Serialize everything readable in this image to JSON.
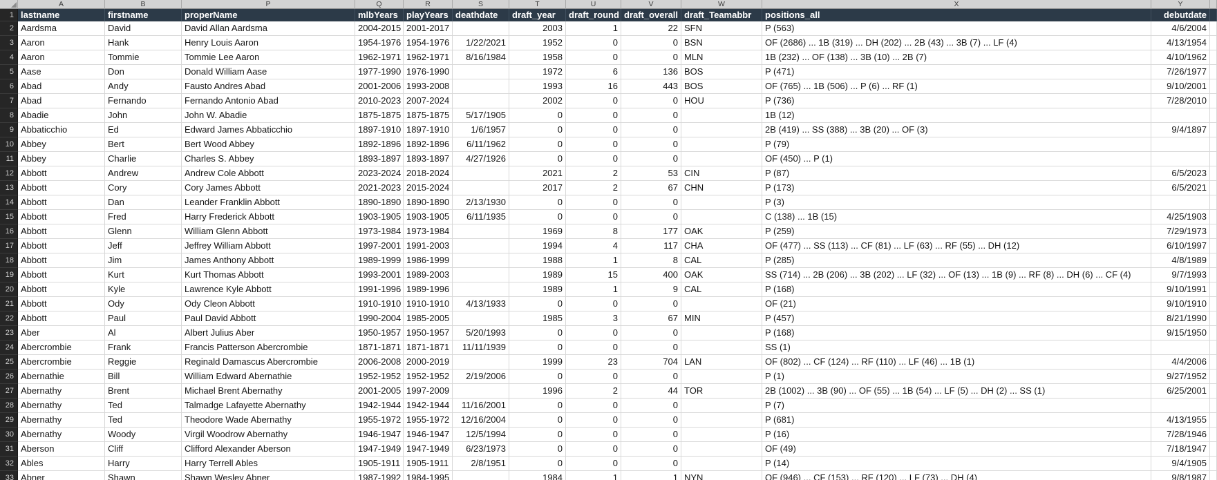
{
  "header_row_number": "1",
  "colors": {
    "header_fill": "#2c3a48",
    "header_text": "#ffffff",
    "gutter_fill": "#262626",
    "gutter_text": "#cfcfcf",
    "letters_fill": "#d3d3d3",
    "letters_text": "#3d3d3d",
    "gridline": "#d8d8d8",
    "cell_text": "#161616",
    "cell_fill": "#ffffff"
  },
  "columns": [
    {
      "letter": "A",
      "field": "lastname",
      "label": "lastname"
    },
    {
      "letter": "B",
      "field": "firstname",
      "label": "firstname"
    },
    {
      "letter": "P",
      "field": "properName",
      "label": "properName"
    },
    {
      "letter": "Q",
      "field": "mlbYears",
      "label": "mlbYears"
    },
    {
      "letter": "R",
      "field": "playYears",
      "label": "playYears"
    },
    {
      "letter": "S",
      "field": "deathdate",
      "label": "deathdate"
    },
    {
      "letter": "T",
      "field": "draft_year",
      "label": "draft_year"
    },
    {
      "letter": "U",
      "field": "draft_round",
      "label": "draft_round"
    },
    {
      "letter": "V",
      "field": "draft_overall",
      "label": "draft_overall"
    },
    {
      "letter": "W",
      "field": "draft_Teamabbr",
      "label": "draft_Teamabbr"
    },
    {
      "letter": "X",
      "field": "positions_all",
      "label": "positions_all"
    },
    {
      "letter": "Y",
      "field": "debutdate",
      "label": "debutdate"
    }
  ],
  "rows": [
    {
      "n": "2",
      "lastname": "Aardsma",
      "firstname": "David",
      "properName": "David Allan Aardsma",
      "mlbYears": "2004-2015",
      "playYears": "2001-2017",
      "deathdate": "",
      "draft_year": "2003",
      "draft_round": "1",
      "draft_overall": "22",
      "draft_Teamabbr": "SFN",
      "positions_all": "P (563)",
      "debutdate": "4/6/2004"
    },
    {
      "n": "3",
      "lastname": "Aaron",
      "firstname": "Hank",
      "properName": "Henry Louis Aaron",
      "mlbYears": "1954-1976",
      "playYears": "1954-1976",
      "deathdate": "1/22/2021",
      "draft_year": "1952",
      "draft_round": "0",
      "draft_overall": "0",
      "draft_Teamabbr": "BSN",
      "positions_all": "OF (2686) ... 1B (319) ... DH (202) ... 2B (43) ... 3B (7) ... LF (4)",
      "debutdate": "4/13/1954"
    },
    {
      "n": "4",
      "lastname": "Aaron",
      "firstname": "Tommie",
      "properName": "Tommie Lee Aaron",
      "mlbYears": "1962-1971",
      "playYears": "1962-1971",
      "deathdate": "8/16/1984",
      "draft_year": "1958",
      "draft_round": "0",
      "draft_overall": "0",
      "draft_Teamabbr": "MLN",
      "positions_all": "1B (232) ... OF (138) ... 3B (10) ... 2B (7)",
      "debutdate": "4/10/1962"
    },
    {
      "n": "5",
      "lastname": "Aase",
      "firstname": "Don",
      "properName": "Donald William Aase",
      "mlbYears": "1977-1990",
      "playYears": "1976-1990",
      "deathdate": "",
      "draft_year": "1972",
      "draft_round": "6",
      "draft_overall": "136",
      "draft_Teamabbr": "BOS",
      "positions_all": "P (471)",
      "debutdate": "7/26/1977"
    },
    {
      "n": "6",
      "lastname": "Abad",
      "firstname": "Andy",
      "properName": "Fausto Andres Abad",
      "mlbYears": "2001-2006",
      "playYears": "1993-2008",
      "deathdate": "",
      "draft_year": "1993",
      "draft_round": "16",
      "draft_overall": "443",
      "draft_Teamabbr": "BOS",
      "positions_all": "OF (765) ... 1B (506) ... P (6) ... RF (1)",
      "debutdate": "9/10/2001"
    },
    {
      "n": "7",
      "lastname": "Abad",
      "firstname": "Fernando",
      "properName": "Fernando Antonio Abad",
      "mlbYears": "2010-2023",
      "playYears": "2007-2024",
      "deathdate": "",
      "draft_year": "2002",
      "draft_round": "0",
      "draft_overall": "0",
      "draft_Teamabbr": "HOU",
      "positions_all": "P (736)",
      "debutdate": "7/28/2010"
    },
    {
      "n": "8",
      "lastname": "Abadie",
      "firstname": "John",
      "properName": "John W. Abadie",
      "mlbYears": "1875-1875",
      "playYears": "1875-1875",
      "deathdate": "5/17/1905",
      "draft_year": "0",
      "draft_round": "0",
      "draft_overall": "0",
      "draft_Teamabbr": "",
      "positions_all": "1B (12)",
      "debutdate": ""
    },
    {
      "n": "9",
      "lastname": "Abbaticchio",
      "firstname": "Ed",
      "properName": "Edward James Abbaticchio",
      "mlbYears": "1897-1910",
      "playYears": "1897-1910",
      "deathdate": "1/6/1957",
      "draft_year": "0",
      "draft_round": "0",
      "draft_overall": "0",
      "draft_Teamabbr": "",
      "positions_all": "2B (419) ... SS (388) ... 3B (20) ... OF (3)",
      "debutdate": "9/4/1897"
    },
    {
      "n": "10",
      "lastname": "Abbey",
      "firstname": "Bert",
      "properName": "Bert Wood Abbey",
      "mlbYears": "1892-1896",
      "playYears": "1892-1896",
      "deathdate": "6/11/1962",
      "draft_year": "0",
      "draft_round": "0",
      "draft_overall": "0",
      "draft_Teamabbr": "",
      "positions_all": "P (79)",
      "debutdate": ""
    },
    {
      "n": "11",
      "lastname": "Abbey",
      "firstname": "Charlie",
      "properName": "Charles S. Abbey",
      "mlbYears": "1893-1897",
      "playYears": "1893-1897",
      "deathdate": "4/27/1926",
      "draft_year": "0",
      "draft_round": "0",
      "draft_overall": "0",
      "draft_Teamabbr": "",
      "positions_all": "OF (450) ... P (1)",
      "debutdate": ""
    },
    {
      "n": "12",
      "lastname": "Abbott",
      "firstname": "Andrew",
      "properName": "Andrew Cole Abbott",
      "mlbYears": "2023-2024",
      "playYears": "2018-2024",
      "deathdate": "",
      "draft_year": "2021",
      "draft_round": "2",
      "draft_overall": "53",
      "draft_Teamabbr": "CIN",
      "positions_all": "P (87)",
      "debutdate": "6/5/2023"
    },
    {
      "n": "13",
      "lastname": "Abbott",
      "firstname": "Cory",
      "properName": "Cory James Abbott",
      "mlbYears": "2021-2023",
      "playYears": "2015-2024",
      "deathdate": "",
      "draft_year": "2017",
      "draft_round": "2",
      "draft_overall": "67",
      "draft_Teamabbr": "CHN",
      "positions_all": "P (173)",
      "debutdate": "6/5/2021"
    },
    {
      "n": "14",
      "lastname": "Abbott",
      "firstname": "Dan",
      "properName": "Leander Franklin Abbott",
      "mlbYears": "1890-1890",
      "playYears": "1890-1890",
      "deathdate": "2/13/1930",
      "draft_year": "0",
      "draft_round": "0",
      "draft_overall": "0",
      "draft_Teamabbr": "",
      "positions_all": "P (3)",
      "debutdate": ""
    },
    {
      "n": "15",
      "lastname": "Abbott",
      "firstname": "Fred",
      "properName": "Harry Frederick Abbott",
      "mlbYears": "1903-1905",
      "playYears": "1903-1905",
      "deathdate": "6/11/1935",
      "draft_year": "0",
      "draft_round": "0",
      "draft_overall": "0",
      "draft_Teamabbr": "",
      "positions_all": "C (138) ... 1B (15)",
      "debutdate": "4/25/1903"
    },
    {
      "n": "16",
      "lastname": "Abbott",
      "firstname": "Glenn",
      "properName": "William Glenn Abbott",
      "mlbYears": "1973-1984",
      "playYears": "1973-1984",
      "deathdate": "",
      "draft_year": "1969",
      "draft_round": "8",
      "draft_overall": "177",
      "draft_Teamabbr": "OAK",
      "positions_all": "P (259)",
      "debutdate": "7/29/1973"
    },
    {
      "n": "17",
      "lastname": "Abbott",
      "firstname": "Jeff",
      "properName": "Jeffrey William Abbott",
      "mlbYears": "1997-2001",
      "playYears": "1991-2003",
      "deathdate": "",
      "draft_year": "1994",
      "draft_round": "4",
      "draft_overall": "117",
      "draft_Teamabbr": "CHA",
      "positions_all": "OF (477) ... SS (113) ... CF (81) ... LF (63) ... RF (55) ... DH (12)",
      "debutdate": "6/10/1997"
    },
    {
      "n": "18",
      "lastname": "Abbott",
      "firstname": "Jim",
      "properName": "James Anthony Abbott",
      "mlbYears": "1989-1999",
      "playYears": "1986-1999",
      "deathdate": "",
      "draft_year": "1988",
      "draft_round": "1",
      "draft_overall": "8",
      "draft_Teamabbr": "CAL",
      "positions_all": "P (285)",
      "debutdate": "4/8/1989"
    },
    {
      "n": "19",
      "lastname": "Abbott",
      "firstname": "Kurt",
      "properName": "Kurt Thomas Abbott",
      "mlbYears": "1993-2001",
      "playYears": "1989-2003",
      "deathdate": "",
      "draft_year": "1989",
      "draft_round": "15",
      "draft_overall": "400",
      "draft_Teamabbr": "OAK",
      "positions_all": "SS (714) ... 2B (206) ... 3B (202) ... LF (32) ... OF (13) ... 1B (9) ... RF (8) ... DH (6) ... CF (4)",
      "debutdate": "9/7/1993"
    },
    {
      "n": "20",
      "lastname": "Abbott",
      "firstname": "Kyle",
      "properName": "Lawrence Kyle Abbott",
      "mlbYears": "1991-1996",
      "playYears": "1989-1996",
      "deathdate": "",
      "draft_year": "1989",
      "draft_round": "1",
      "draft_overall": "9",
      "draft_Teamabbr": "CAL",
      "positions_all": "P (168)",
      "debutdate": "9/10/1991"
    },
    {
      "n": "21",
      "lastname": "Abbott",
      "firstname": "Ody",
      "properName": "Ody Cleon Abbott",
      "mlbYears": "1910-1910",
      "playYears": "1910-1910",
      "deathdate": "4/13/1933",
      "draft_year": "0",
      "draft_round": "0",
      "draft_overall": "0",
      "draft_Teamabbr": "",
      "positions_all": "OF (21)",
      "debutdate": "9/10/1910"
    },
    {
      "n": "22",
      "lastname": "Abbott",
      "firstname": "Paul",
      "properName": "Paul David Abbott",
      "mlbYears": "1990-2004",
      "playYears": "1985-2005",
      "deathdate": "",
      "draft_year": "1985",
      "draft_round": "3",
      "draft_overall": "67",
      "draft_Teamabbr": "MIN",
      "positions_all": "P (457)",
      "debutdate": "8/21/1990"
    },
    {
      "n": "23",
      "lastname": "Aber",
      "firstname": "Al",
      "properName": "Albert Julius Aber",
      "mlbYears": "1950-1957",
      "playYears": "1950-1957",
      "deathdate": "5/20/1993",
      "draft_year": "0",
      "draft_round": "0",
      "draft_overall": "0",
      "draft_Teamabbr": "",
      "positions_all": "P (168)",
      "debutdate": "9/15/1950"
    },
    {
      "n": "24",
      "lastname": "Abercrombie",
      "firstname": "Frank",
      "properName": "Francis Patterson Abercrombie",
      "mlbYears": "1871-1871",
      "playYears": "1871-1871",
      "deathdate": "11/11/1939",
      "draft_year": "0",
      "draft_round": "0",
      "draft_overall": "0",
      "draft_Teamabbr": "",
      "positions_all": "SS (1)",
      "debutdate": ""
    },
    {
      "n": "25",
      "lastname": "Abercrombie",
      "firstname": "Reggie",
      "properName": "Reginald Damascus Abercrombie",
      "mlbYears": "2006-2008",
      "playYears": "2000-2019",
      "deathdate": "",
      "draft_year": "1999",
      "draft_round": "23",
      "draft_overall": "704",
      "draft_Teamabbr": "LAN",
      "positions_all": "OF (802) ... CF (124) ... RF (110) ... LF (46) ... 1B (1)",
      "debutdate": "4/4/2006"
    },
    {
      "n": "26",
      "lastname": "Abernathie",
      "firstname": "Bill",
      "properName": "William Edward Abernathie",
      "mlbYears": "1952-1952",
      "playYears": "1952-1952",
      "deathdate": "2/19/2006",
      "draft_year": "0",
      "draft_round": "0",
      "draft_overall": "0",
      "draft_Teamabbr": "",
      "positions_all": "P (1)",
      "debutdate": "9/27/1952"
    },
    {
      "n": "27",
      "lastname": "Abernathy",
      "firstname": "Brent",
      "properName": "Michael Brent Abernathy",
      "mlbYears": "2001-2005",
      "playYears": "1997-2009",
      "deathdate": "",
      "draft_year": "1996",
      "draft_round": "2",
      "draft_overall": "44",
      "draft_Teamabbr": "TOR",
      "positions_all": "2B (1002) ... 3B (90) ... OF (55) ... 1B (54) ... LF (5) ... DH (2) ... SS (1)",
      "debutdate": "6/25/2001"
    },
    {
      "n": "28",
      "lastname": "Abernathy",
      "firstname": "Ted",
      "properName": "Talmadge Lafayette Abernathy",
      "mlbYears": "1942-1944",
      "playYears": "1942-1944",
      "deathdate": "11/16/2001",
      "draft_year": "0",
      "draft_round": "0",
      "draft_overall": "0",
      "draft_Teamabbr": "",
      "positions_all": "P (7)",
      "debutdate": ""
    },
    {
      "n": "29",
      "lastname": "Abernathy",
      "firstname": "Ted",
      "properName": "Theodore Wade Abernathy",
      "mlbYears": "1955-1972",
      "playYears": "1955-1972",
      "deathdate": "12/16/2004",
      "draft_year": "0",
      "draft_round": "0",
      "draft_overall": "0",
      "draft_Teamabbr": "",
      "positions_all": "P (681)",
      "debutdate": "4/13/1955"
    },
    {
      "n": "30",
      "lastname": "Abernathy",
      "firstname": "Woody",
      "properName": "Virgil Woodrow Abernathy",
      "mlbYears": "1946-1947",
      "playYears": "1946-1947",
      "deathdate": "12/5/1994",
      "draft_year": "0",
      "draft_round": "0",
      "draft_overall": "0",
      "draft_Teamabbr": "",
      "positions_all": "P (16)",
      "debutdate": "7/28/1946"
    },
    {
      "n": "31",
      "lastname": "Aberson",
      "firstname": "Cliff",
      "properName": "Clifford Alexander Aberson",
      "mlbYears": "1947-1949",
      "playYears": "1947-1949",
      "deathdate": "6/23/1973",
      "draft_year": "0",
      "draft_round": "0",
      "draft_overall": "0",
      "draft_Teamabbr": "",
      "positions_all": "OF (49)",
      "debutdate": "7/18/1947"
    },
    {
      "n": "32",
      "lastname": "Ables",
      "firstname": "Harry",
      "properName": "Harry Terrell Ables",
      "mlbYears": "1905-1911",
      "playYears": "1905-1911",
      "deathdate": "2/8/1951",
      "draft_year": "0",
      "draft_round": "0",
      "draft_overall": "0",
      "draft_Teamabbr": "",
      "positions_all": "P (14)",
      "debutdate": "9/4/1905"
    },
    {
      "n": "33",
      "lastname": "Abner",
      "firstname": "Shawn",
      "properName": "Shawn Wesley Abner",
      "mlbYears": "1987-1992",
      "playYears": "1984-1995",
      "deathdate": "",
      "draft_year": "1984",
      "draft_round": "1",
      "draft_overall": "1",
      "draft_Teamabbr": "NYN",
      "positions_all": "OF (946) ... CF (153) ... RF (120) ... LF (73) ... DH (4)",
      "debutdate": "9/8/1987"
    }
  ]
}
